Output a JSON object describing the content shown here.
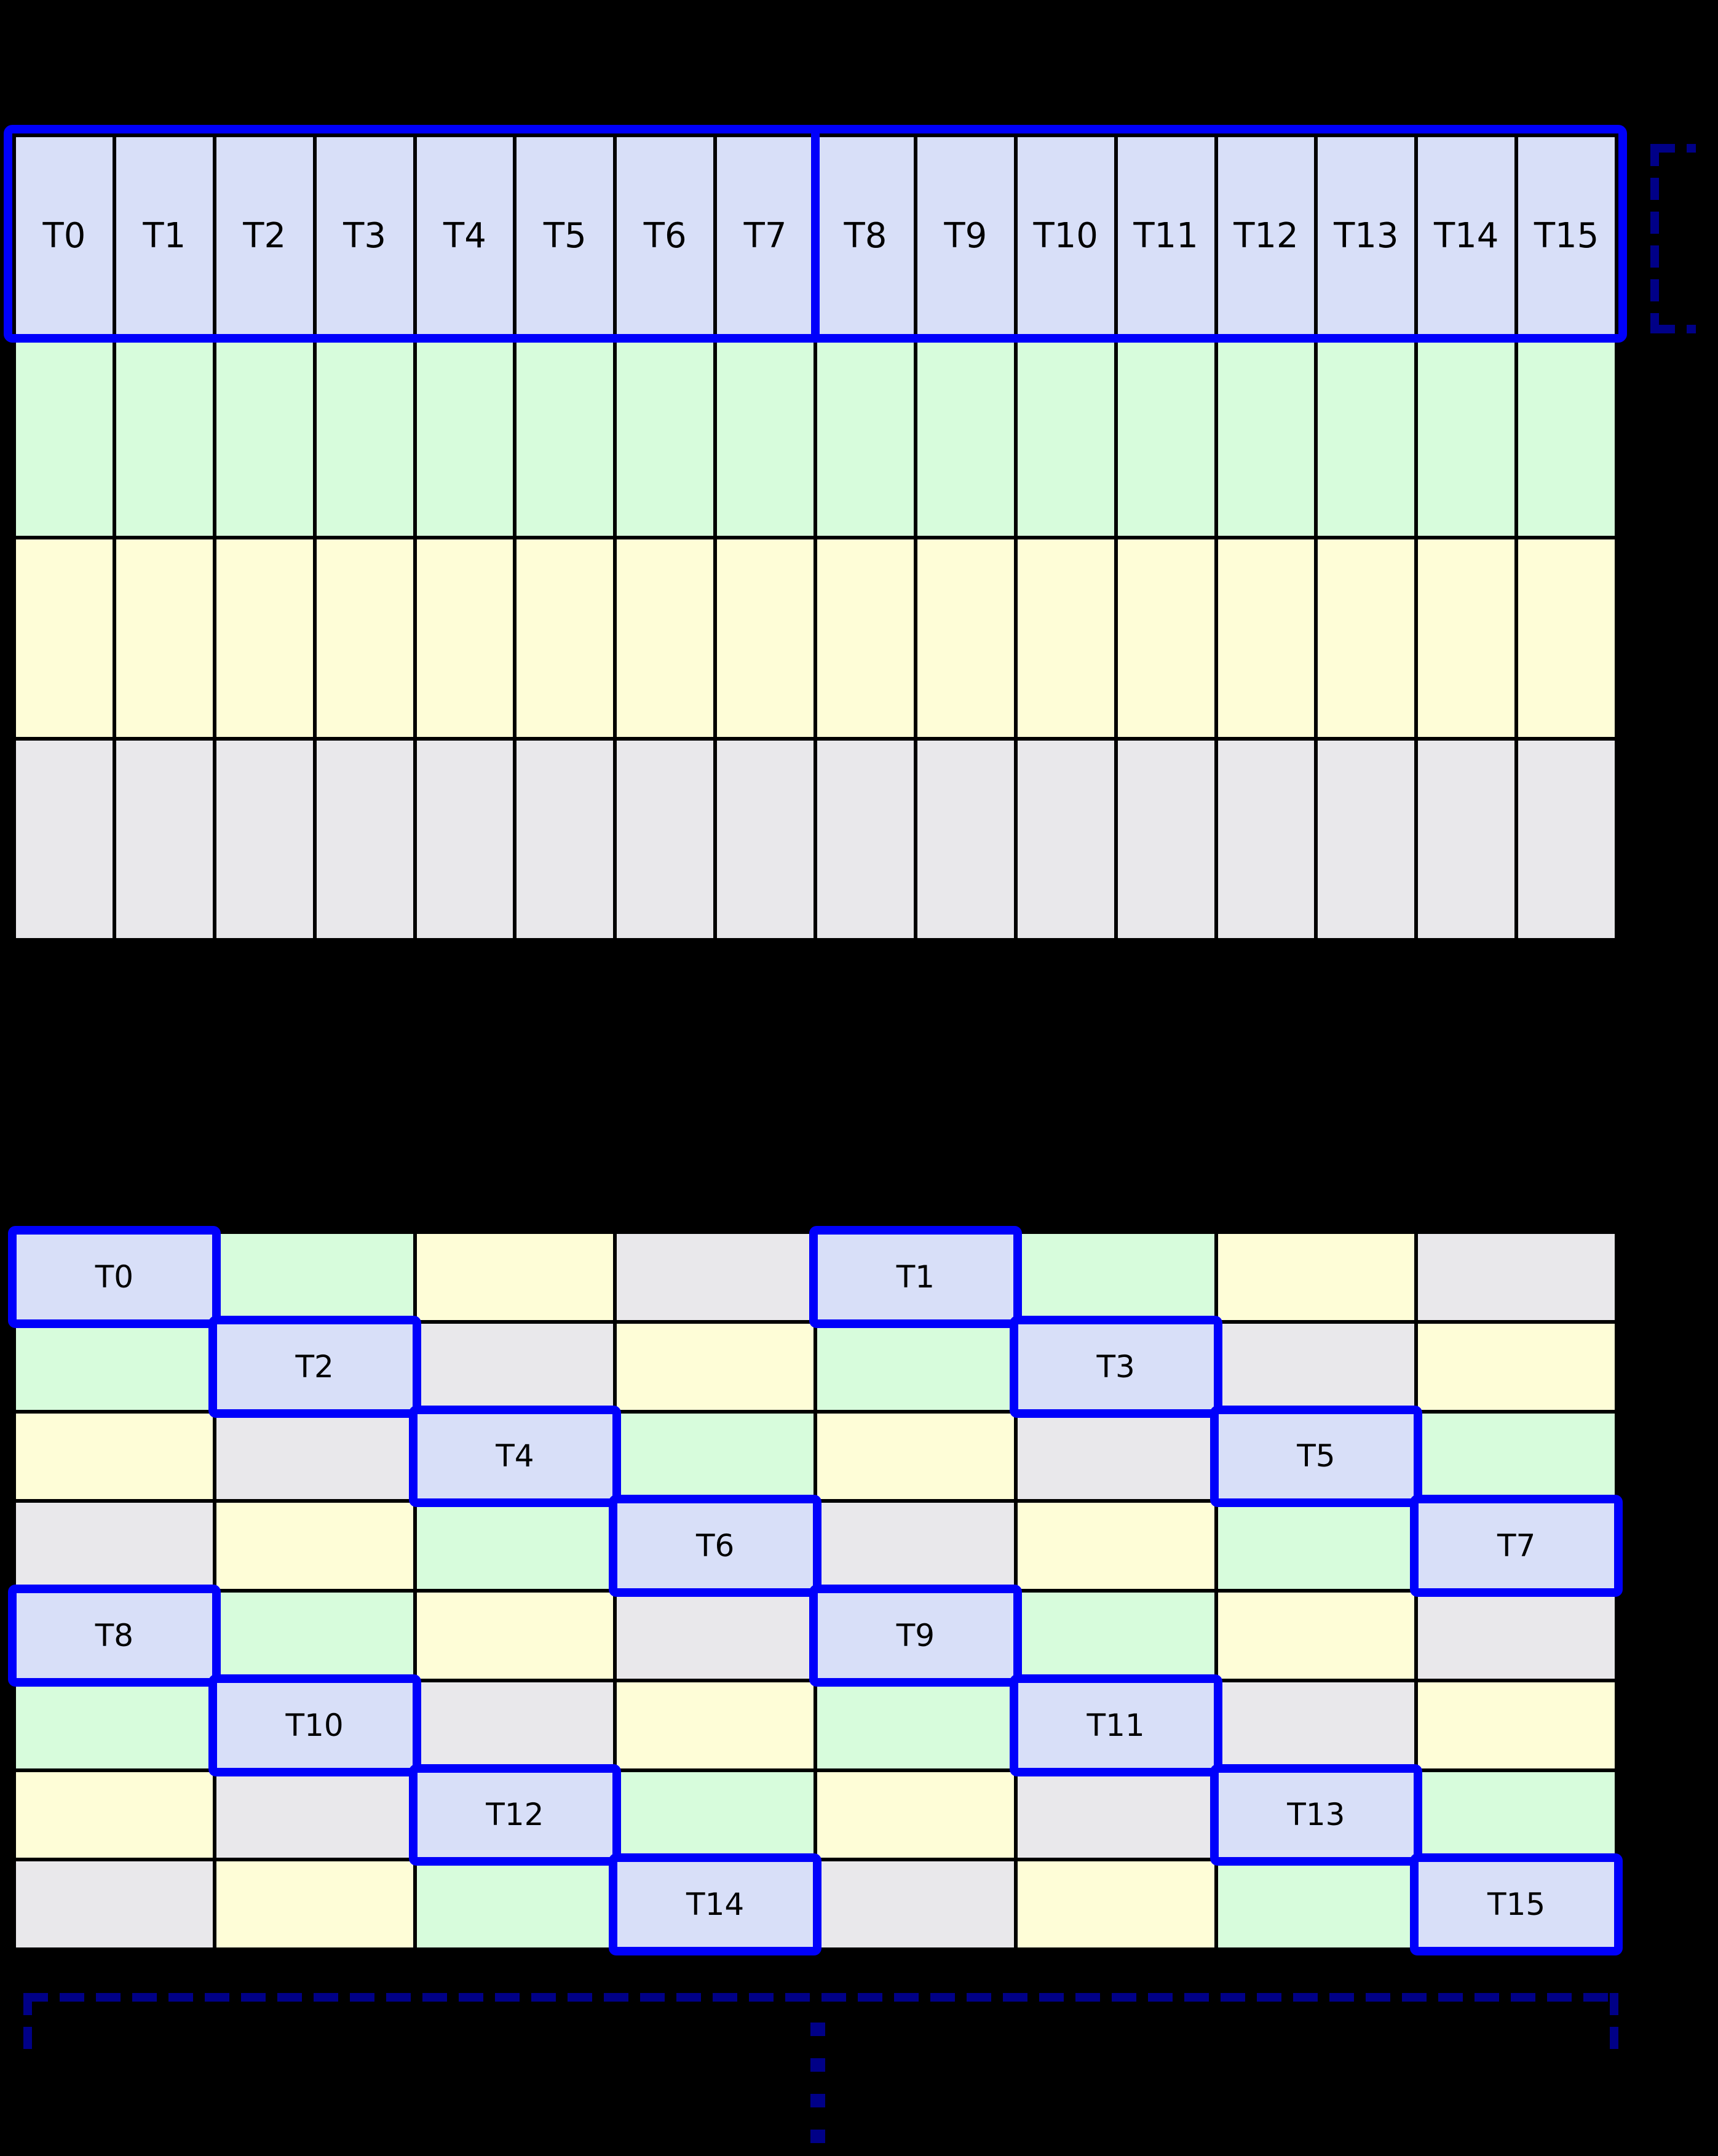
{
  "palette": {
    "thread_cell": "#D8DFF8",
    "bank_green": "#D7FCDC",
    "bank_yellow": "#FEFDD7",
    "bank_gray": "#E9E8EB",
    "highlight_blue": "#0000FB",
    "bracket_navy": "#000087",
    "grid_line": "#000000",
    "background": "#000000"
  },
  "top_grid": {
    "columns": 16,
    "rows": [
      {
        "color": "lavender",
        "labels": [
          "T0",
          "T1",
          "T2",
          "T3",
          "T4",
          "T5",
          "T6",
          "T7",
          "T8",
          "T9",
          "T10",
          "T11",
          "T12",
          "T13",
          "T14",
          "T15"
        ]
      },
      {
        "color": "green",
        "labels": []
      },
      {
        "color": "yellow",
        "labels": []
      },
      {
        "color": "gray",
        "labels": []
      }
    ]
  },
  "bottom_grid": {
    "columns": 8,
    "rows": [
      [
        {
          "color": "lavender",
          "label": "T0",
          "highlight": true
        },
        {
          "color": "green"
        },
        {
          "color": "yellow"
        },
        {
          "color": "gray"
        },
        {
          "color": "lavender",
          "label": "T1",
          "highlight": true
        },
        {
          "color": "green"
        },
        {
          "color": "yellow"
        },
        {
          "color": "gray"
        }
      ],
      [
        {
          "color": "green"
        },
        {
          "color": "lavender",
          "label": "T2",
          "highlight": true
        },
        {
          "color": "gray"
        },
        {
          "color": "yellow"
        },
        {
          "color": "green"
        },
        {
          "color": "lavender",
          "label": "T3",
          "highlight": true
        },
        {
          "color": "gray"
        },
        {
          "color": "yellow"
        }
      ],
      [
        {
          "color": "yellow"
        },
        {
          "color": "gray"
        },
        {
          "color": "lavender",
          "label": "T4",
          "highlight": true
        },
        {
          "color": "green"
        },
        {
          "color": "yellow"
        },
        {
          "color": "gray"
        },
        {
          "color": "lavender",
          "label": "T5",
          "highlight": true
        },
        {
          "color": "green"
        }
      ],
      [
        {
          "color": "gray"
        },
        {
          "color": "yellow"
        },
        {
          "color": "green"
        },
        {
          "color": "lavender",
          "label": "T6",
          "highlight": true
        },
        {
          "color": "gray"
        },
        {
          "color": "yellow"
        },
        {
          "color": "green"
        },
        {
          "color": "lavender",
          "label": "T7",
          "highlight": true
        }
      ],
      [
        {
          "color": "lavender",
          "label": "T8",
          "highlight": true
        },
        {
          "color": "green"
        },
        {
          "color": "yellow"
        },
        {
          "color": "gray"
        },
        {
          "color": "lavender",
          "label": "T9",
          "highlight": true
        },
        {
          "color": "green"
        },
        {
          "color": "yellow"
        },
        {
          "color": "gray"
        }
      ],
      [
        {
          "color": "green"
        },
        {
          "color": "lavender",
          "label": "T10",
          "highlight": true
        },
        {
          "color": "gray"
        },
        {
          "color": "yellow"
        },
        {
          "color": "green"
        },
        {
          "color": "lavender",
          "label": "T11",
          "highlight": true
        },
        {
          "color": "gray"
        },
        {
          "color": "yellow"
        }
      ],
      [
        {
          "color": "yellow"
        },
        {
          "color": "gray"
        },
        {
          "color": "lavender",
          "label": "T12",
          "highlight": true
        },
        {
          "color": "green"
        },
        {
          "color": "yellow"
        },
        {
          "color": "gray"
        },
        {
          "color": "lavender",
          "label": "T13",
          "highlight": true
        },
        {
          "color": "green"
        }
      ],
      [
        {
          "color": "gray"
        },
        {
          "color": "yellow"
        },
        {
          "color": "green"
        },
        {
          "color": "lavender",
          "label": "T14",
          "highlight": true
        },
        {
          "color": "gray"
        },
        {
          "color": "yellow"
        },
        {
          "color": "green"
        },
        {
          "color": "lavender",
          "label": "T15",
          "highlight": true
        }
      ]
    ]
  }
}
